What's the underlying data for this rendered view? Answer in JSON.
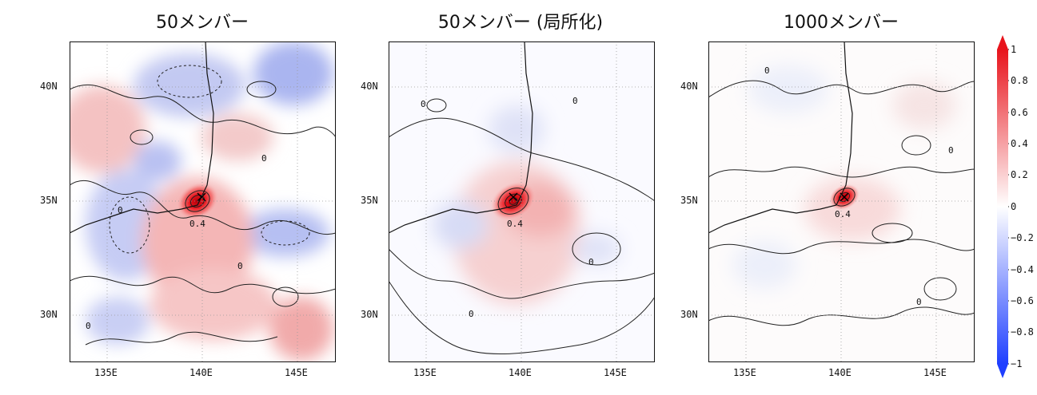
{
  "panels": [
    {
      "title": "50メンバー",
      "lat_ticks": [
        "40N",
        "35N",
        "30N"
      ],
      "lon_ticks": [
        "135E",
        "140E",
        "145E"
      ],
      "contour_labels": [
        "0",
        "0.4"
      ]
    },
    {
      "title": "50メンバー (局所化)",
      "lat_ticks": [
        "40N",
        "35N",
        "30N"
      ],
      "lon_ticks": [
        "135E",
        "140E",
        "145E"
      ],
      "contour_labels": [
        "0",
        "0.4"
      ]
    },
    {
      "title": "1000メンバー",
      "lat_ticks": [
        "40N",
        "35N",
        "30N"
      ],
      "lon_ticks": [
        "135E",
        "140E",
        "145E"
      ],
      "contour_labels": [
        "0",
        "0.4"
      ]
    }
  ],
  "colorbar": {
    "ticks": [
      "1",
      "0.8",
      "0.6",
      "0.4",
      "0.2",
      "0",
      "−0.2",
      "−0.4",
      "−0.6",
      "−0.8",
      "−1"
    ],
    "min": -1,
    "max": 1,
    "colors": {
      "low": "#1f3fff",
      "mid": "#ffffff",
      "high": "#e8141c"
    }
  },
  "map_extent": {
    "lon": [
      133,
      147
    ],
    "lat": [
      28,
      42
    ]
  },
  "colors": {
    "positive": "#e8141c",
    "negative": "#2d4bff",
    "contour": "#222222"
  }
}
